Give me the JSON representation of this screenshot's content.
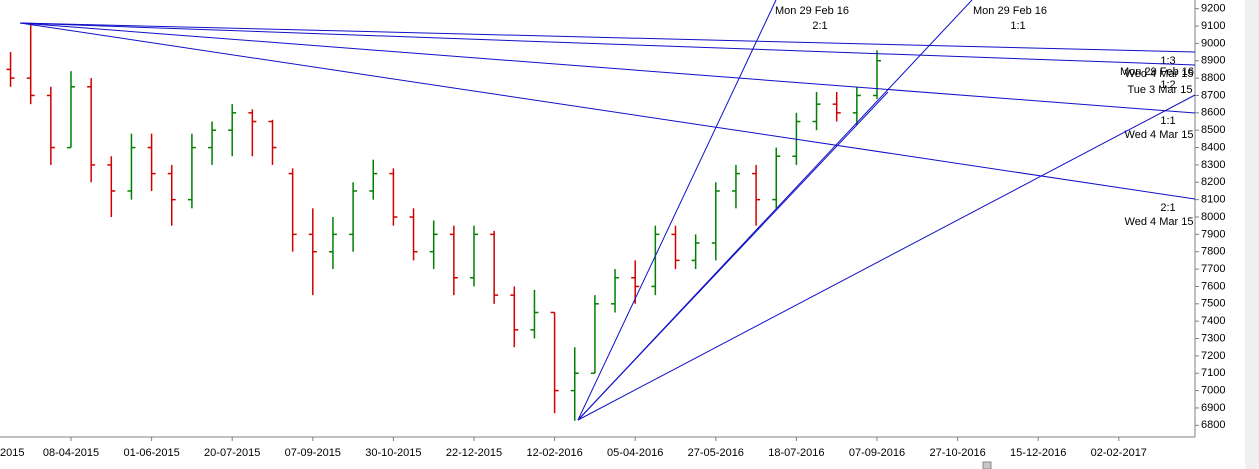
{
  "chart_data": {
    "type": "ohlc",
    "categories": [
      "2015",
      null,
      null,
      null,
      "08-04-2015",
      null,
      null,
      null,
      "01-06-2015",
      null,
      null,
      null,
      "20-07-2015",
      null,
      null,
      null,
      "07-09-2015",
      null,
      null,
      null,
      "30-10-2015",
      null,
      null,
      null,
      "22-12-2015",
      null,
      null,
      null,
      "12-02-2016",
      null,
      null,
      null,
      "05-04-2016",
      null,
      null,
      null,
      "27-05-2016",
      null,
      null,
      null,
      "18-07-2016",
      null,
      null,
      null,
      "07-09-2016",
      null,
      null,
      null,
      "27-10-2016",
      null,
      null,
      null,
      "15-12-2016",
      null,
      null,
      null,
      "02-02-2017",
      null,
      null,
      null
    ],
    "open": [
      null,
      8850,
      8800,
      8700,
      8400,
      8750,
      8300,
      8150,
      8400,
      8250,
      8100,
      8400,
      8500,
      8600,
      8550,
      8250,
      7900,
      7800,
      7900,
      8150,
      8250,
      8000,
      7800,
      7900,
      7650,
      7900,
      7550,
      7350,
      7450,
      7000,
      7100,
      7500,
      7650,
      7600,
      7900,
      7750,
      7850,
      8150,
      8250,
      8100,
      8350,
      8550,
      8650,
      8600,
      8700,
      null,
      null,
      null,
      null,
      null,
      null,
      null,
      null,
      null,
      null,
      null,
      null,
      null,
      null,
      null
    ],
    "high": [
      null,
      8950,
      9119,
      8750,
      8840,
      8800,
      8350,
      8480,
      8480,
      8300,
      8480,
      8550,
      8650,
      8620,
      8560,
      8280,
      8050,
      8000,
      8200,
      8330,
      8280,
      8050,
      7980,
      7950,
      7950,
      7920,
      7600,
      7580,
      7450,
      7250,
      7550,
      7700,
      7750,
      7950,
      7950,
      7900,
      8200,
      8300,
      8300,
      8400,
      8600,
      8720,
      8720,
      8750,
      8960,
      null,
      null,
      null,
      null,
      null,
      null,
      null,
      null,
      null,
      null,
      null,
      null,
      null,
      null,
      null
    ],
    "low": [
      null,
      8750,
      8650,
      8300,
      8400,
      8200,
      8000,
      8100,
      8150,
      7950,
      8050,
      8300,
      8350,
      8350,
      8300,
      7800,
      7550,
      7700,
      7800,
      8100,
      7950,
      7750,
      7700,
      7550,
      7600,
      7500,
      7250,
      7300,
      6870,
      6826,
      7100,
      7450,
      7500,
      7550,
      7700,
      7700,
      7750,
      8050,
      7950,
      8050,
      8300,
      8500,
      8550,
      8530,
      8680,
      null,
      null,
      null,
      null,
      null,
      null,
      null,
      null,
      null,
      null,
      null,
      null,
      null,
      null,
      null
    ],
    "close": [
      null,
      8800,
      8700,
      8400,
      8750,
      8300,
      8150,
      8400,
      8250,
      8100,
      8400,
      8500,
      8600,
      8550,
      8400,
      7900,
      7800,
      7900,
      8150,
      8250,
      8000,
      7800,
      7900,
      7650,
      7900,
      7550,
      7350,
      7450,
      7000,
      7100,
      7500,
      7650,
      7600,
      7900,
      7750,
      7850,
      8150,
      8250,
      8100,
      8350,
      8550,
      8650,
      8600,
      8700,
      8900,
      null,
      null,
      null,
      null,
      null,
      null,
      null,
      null,
      null,
      null,
      null,
      null,
      null,
      null,
      null
    ],
    "up_color": "#008000",
    "down_color": "#d00000",
    "ylim": [
      6750,
      9250
    ],
    "yticks": [
      6800,
      6900,
      7000,
      7100,
      7200,
      7300,
      7400,
      7500,
      7600,
      7700,
      7800,
      7900,
      8000,
      8100,
      8200,
      8300,
      8400,
      8500,
      8600,
      8700,
      8800,
      8900,
      9000,
      9100,
      9200
    ],
    "annotations": [
      "Mon 29 Feb 16",
      "2:1",
      "Mon 29 Feb 16",
      "1:1",
      "1:3",
      "Mon 29 Feb 16",
      "Wed 4 Mar 15",
      "1:2",
      "Tue 3 Mar 15",
      "1:1",
      "Wed 4 Mar 15",
      "2:1",
      "Wed 4 Mar 15"
    ]
  }
}
